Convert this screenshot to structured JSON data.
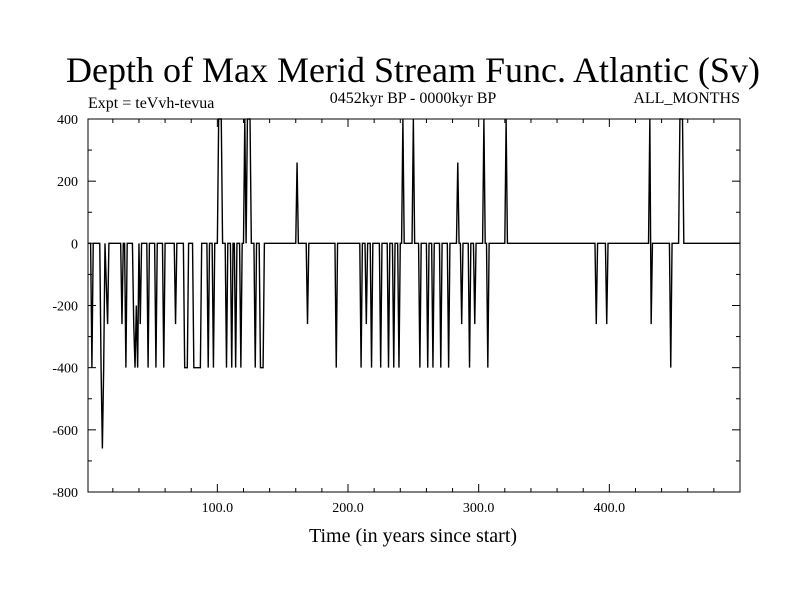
{
  "chart_data": {
    "type": "line",
    "title": "Depth of Max Merid Stream Func. Atlantic (Sv)",
    "subtitle_left": "Expt = teVvh-tevua",
    "subtitle_center": "0452kyr BP - 0000kyr BP",
    "subtitle_right": "ALL_MONTHS",
    "xlabel": "Time (in years since start)",
    "ylabel": "",
    "xlim": [
      1,
      500
    ],
    "ylim": [
      -800,
      400
    ],
    "x_ticks": [
      100,
      200,
      300,
      400
    ],
    "x_tick_labels": [
      "100.0",
      "200.0",
      "300.0",
      "400.0"
    ],
    "y_ticks": [
      -800,
      -600,
      -400,
      -200,
      0,
      200,
      400
    ],
    "y_tick_labels": [
      "-800",
      "-600",
      "-400",
      "-200",
      "0",
      "200",
      "400"
    ],
    "grid": false,
    "color": "#000000",
    "series": [
      {
        "values": [
          [
            1,
            0
          ],
          [
            3,
            0
          ],
          [
            4,
            -400
          ],
          [
            5,
            0
          ],
          [
            10,
            0
          ],
          [
            11,
            -400
          ],
          [
            12,
            -660
          ],
          [
            13,
            -400
          ],
          [
            14,
            0
          ],
          [
            16,
            -260
          ],
          [
            17,
            0
          ],
          [
            26,
            0
          ],
          [
            27,
            -260
          ],
          [
            28,
            0
          ],
          [
            29,
            0
          ],
          [
            30,
            -400
          ],
          [
            31,
            0
          ],
          [
            35,
            0
          ],
          [
            36,
            -260
          ],
          [
            37,
            -400
          ],
          [
            38,
            -200
          ],
          [
            39,
            -400
          ],
          [
            40,
            0
          ],
          [
            41,
            -260
          ],
          [
            42,
            0
          ],
          [
            46,
            0
          ],
          [
            47,
            -400
          ],
          [
            48,
            0
          ],
          [
            52,
            0
          ],
          [
            53,
            -400
          ],
          [
            54,
            0
          ],
          [
            58,
            0
          ],
          [
            59,
            -400
          ],
          [
            60,
            0
          ],
          [
            67,
            0
          ],
          [
            68,
            -260
          ],
          [
            69,
            0
          ],
          [
            74,
            0
          ],
          [
            75,
            -400
          ],
          [
            77,
            -400
          ],
          [
            78,
            0
          ],
          [
            81,
            0
          ],
          [
            82,
            -400
          ],
          [
            87,
            -400
          ],
          [
            88,
            0
          ],
          [
            92,
            0
          ],
          [
            93,
            -400
          ],
          [
            94,
            0
          ],
          [
            96,
            0
          ],
          [
            97,
            -400
          ],
          [
            98,
            0
          ],
          [
            100,
            0
          ],
          [
            101,
            400
          ],
          [
            103,
            400
          ],
          [
            104,
            0
          ],
          [
            106,
            0
          ],
          [
            107,
            -400
          ],
          [
            108,
            0
          ],
          [
            110,
            0
          ],
          [
            111,
            -400
          ],
          [
            112,
            0
          ],
          [
            113,
            0
          ],
          [
            114,
            -400
          ],
          [
            115,
            0
          ],
          [
            117,
            0
          ],
          [
            118,
            -400
          ],
          [
            119,
            0
          ],
          [
            120,
            0
          ],
          [
            121,
            400
          ],
          [
            122,
            0
          ],
          [
            123,
            400
          ],
          [
            125,
            400
          ],
          [
            126,
            0
          ],
          [
            128,
            0
          ],
          [
            129,
            -400
          ],
          [
            130,
            0
          ],
          [
            132,
            0
          ],
          [
            133,
            -400
          ],
          [
            135,
            -400
          ],
          [
            136,
            0
          ],
          [
            160,
            0
          ],
          [
            161,
            260
          ],
          [
            162,
            0
          ],
          [
            168,
            0
          ],
          [
            169,
            -260
          ],
          [
            170,
            0
          ],
          [
            190,
            0
          ],
          [
            191,
            -400
          ],
          [
            192,
            0
          ],
          [
            209,
            0
          ],
          [
            210,
            -400
          ],
          [
            211,
            0
          ],
          [
            213,
            0
          ],
          [
            214,
            -260
          ],
          [
            215,
            0
          ],
          [
            217,
            0
          ],
          [
            218,
            -400
          ],
          [
            219,
            0
          ],
          [
            224,
            0
          ],
          [
            225,
            -400
          ],
          [
            226,
            0
          ],
          [
            230,
            0
          ],
          [
            231,
            -400
          ],
          [
            232,
            0
          ],
          [
            234,
            0
          ],
          [
            235,
            -400
          ],
          [
            236,
            0
          ],
          [
            238,
            0
          ],
          [
            239,
            -400
          ],
          [
            240,
            0
          ],
          [
            241,
            0
          ],
          [
            242,
            400
          ],
          [
            243,
            0
          ],
          [
            249,
            0
          ],
          [
            250,
            400
          ],
          [
            251,
            0
          ],
          [
            254,
            0
          ],
          [
            255,
            -400
          ],
          [
            256,
            0
          ],
          [
            260,
            0
          ],
          [
            261,
            -400
          ],
          [
            262,
            0
          ],
          [
            264,
            0
          ],
          [
            265,
            -400
          ],
          [
            266,
            0
          ],
          [
            270,
            0
          ],
          [
            271,
            -400
          ],
          [
            272,
            0
          ],
          [
            276,
            0
          ],
          [
            277,
            -400
          ],
          [
            278,
            0
          ],
          [
            283,
            0
          ],
          [
            284,
            260
          ],
          [
            285,
            0
          ],
          [
            286,
            0
          ],
          [
            287,
            -260
          ],
          [
            288,
            0
          ],
          [
            292,
            0
          ],
          [
            293,
            -400
          ],
          [
            294,
            0
          ],
          [
            296,
            0
          ],
          [
            297,
            -260
          ],
          [
            298,
            0
          ],
          [
            303,
            0
          ],
          [
            304,
            400
          ],
          [
            305,
            0
          ],
          [
            306,
            0
          ],
          [
            307,
            -400
          ],
          [
            308,
            0
          ],
          [
            320,
            0
          ],
          [
            321,
            400
          ],
          [
            322,
            0
          ],
          [
            389,
            0
          ],
          [
            390,
            -260
          ],
          [
            391,
            0
          ],
          [
            397,
            0
          ],
          [
            398,
            -260
          ],
          [
            399,
            0
          ],
          [
            430,
            0
          ],
          [
            431,
            400
          ],
          [
            432,
            -260
          ],
          [
            433,
            0
          ],
          [
            446,
            0
          ],
          [
            447,
            -400
          ],
          [
            448,
            0
          ],
          [
            453,
            0
          ],
          [
            454,
            400
          ],
          [
            456,
            400
          ],
          [
            457,
            0
          ],
          [
            500,
            0
          ]
        ]
      }
    ]
  }
}
